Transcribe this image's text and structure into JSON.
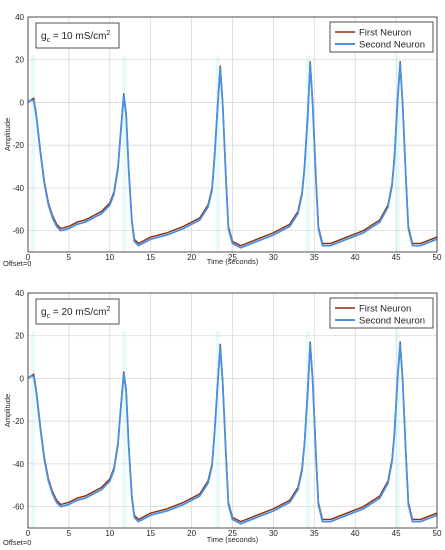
{
  "colors": {
    "first_neuron": "#8b2e0f",
    "second_neuron": "#4a90e2",
    "noise": "#b8f0f4",
    "grid": "#d9d9d9",
    "axis": "#262626"
  },
  "chart_data": [
    {
      "type": "line",
      "annotation_prefix": "g",
      "annotation_sub": "c",
      "annotation_value": " = 10 mS/cm",
      "annotation_sup": "2",
      "xlabel": "Time (seconds)",
      "ylabel": "Amplitude",
      "offset_label": "Offset=0",
      "xlim": [
        0,
        50
      ],
      "ylim": [
        -70,
        40
      ],
      "xticks": [
        0,
        5,
        10,
        15,
        20,
        25,
        30,
        35,
        40,
        45,
        50
      ],
      "yticks": [
        40,
        20,
        0,
        -20,
        -40,
        -60
      ],
      "grid": true,
      "legend_position": "top-right",
      "series": [
        {
          "name": "First Neuron",
          "x": [
            0,
            0.3,
            0.7,
            1,
            1.5,
            2,
            2.5,
            3,
            3.5,
            4,
            5,
            6,
            7,
            8,
            9,
            10,
            10.5,
            11,
            11.3,
            11.7,
            12,
            12.3,
            12.7,
            13,
            13.5,
            14,
            15,
            17,
            19,
            21,
            22,
            22.5,
            22.8,
            23.2,
            23.5,
            23.8,
            24.2,
            24.5,
            25,
            26,
            28,
            30,
            32,
            33,
            33.5,
            33.8,
            34.2,
            34.5,
            34.8,
            35.2,
            35.5,
            36,
            37,
            39,
            41,
            43,
            44,
            44.5,
            44.8,
            45.2,
            45.5,
            45.8,
            46.2,
            46.5,
            47,
            48,
            50
          ],
          "y": [
            0,
            1,
            2,
            -5,
            -22,
            -37,
            -47,
            -53,
            -57,
            -59,
            -58,
            -56,
            -55,
            -53,
            -51,
            -47,
            -42,
            -30,
            -15,
            4,
            -5,
            -30,
            -55,
            -64,
            -66,
            -65,
            -63,
            -61,
            -58,
            -54,
            -48,
            -40,
            -25,
            0,
            17,
            0,
            -35,
            -58,
            -65,
            -67,
            -64,
            -61,
            -57,
            -51,
            -42,
            -30,
            -5,
            19,
            0,
            -35,
            -58,
            -66,
            -66,
            -63,
            -60,
            -55,
            -48,
            -38,
            -25,
            3,
            19,
            0,
            -35,
            -58,
            -66,
            -66,
            -63
          ]
        },
        {
          "name": "Second Neuron",
          "x": [
            0,
            0.3,
            0.7,
            1,
            1.5,
            2,
            2.5,
            3,
            3.5,
            4,
            5,
            6,
            7,
            8,
            9,
            10,
            10.5,
            11,
            11.3,
            11.7,
            12,
            12.3,
            12.7,
            13,
            13.5,
            14,
            15,
            17,
            19,
            21,
            22,
            22.5,
            22.8,
            23.2,
            23.5,
            23.8,
            24.2,
            24.5,
            25,
            26,
            28,
            30,
            32,
            33,
            33.5,
            33.8,
            34.2,
            34.5,
            34.8,
            35.2,
            35.5,
            36,
            37,
            39,
            41,
            43,
            44,
            44.5,
            44.8,
            45.2,
            45.5,
            45.8,
            46.2,
            46.5,
            47,
            48,
            50
          ],
          "y": [
            0,
            1,
            1,
            -6,
            -23,
            -38,
            -48,
            -54,
            -58,
            -60,
            -59,
            -57,
            -56,
            -54,
            -52,
            -48,
            -43,
            -31,
            -16,
            3,
            -6,
            -31,
            -56,
            -65,
            -67,
            -66,
            -64,
            -62,
            -59,
            -55,
            -49,
            -41,
            -26,
            -1,
            16,
            -1,
            -36,
            -59,
            -66,
            -68,
            -65,
            -62,
            -58,
            -52,
            -43,
            -31,
            -6,
            18,
            -1,
            -36,
            -59,
            -67,
            -67,
            -64,
            -61,
            -56,
            -49,
            -39,
            -26,
            2,
            18,
            -1,
            -36,
            -59,
            -67,
            -67,
            -64
          ]
        }
      ]
    },
    {
      "type": "line",
      "annotation_prefix": "g",
      "annotation_sub": "c",
      "annotation_value": " = 20 mS/cm",
      "annotation_sup": "2",
      "xlabel": "Time (seconds)",
      "ylabel": "Amplitude",
      "offset_label": "Offset=0",
      "xlim": [
        0,
        50
      ],
      "ylim": [
        -70,
        40
      ],
      "xticks": [
        0,
        5,
        10,
        15,
        20,
        25,
        30,
        35,
        40,
        45,
        50
      ],
      "yticks": [
        40,
        20,
        0,
        -20,
        -40,
        -60
      ],
      "grid": true,
      "legend_position": "top-right",
      "series": [
        {
          "name": "First Neuron",
          "x": [
            0,
            0.3,
            0.7,
            1,
            1.5,
            2,
            2.5,
            3,
            3.5,
            4,
            5,
            6,
            7,
            8,
            9,
            10,
            10.5,
            11,
            11.3,
            11.7,
            12,
            12.3,
            12.7,
            13,
            13.5,
            14,
            15,
            17,
            19,
            21,
            22,
            22.5,
            22.8,
            23.2,
            23.5,
            23.8,
            24.2,
            24.5,
            25,
            26,
            28,
            30,
            32,
            33,
            33.5,
            33.8,
            34.2,
            34.5,
            34.8,
            35.2,
            35.5,
            36,
            37,
            39,
            41,
            43,
            44,
            44.5,
            44.8,
            45.2,
            45.5,
            45.8,
            46.2,
            46.5,
            47,
            48,
            50
          ],
          "y": [
            0,
            1,
            2,
            -5,
            -22,
            -37,
            -47,
            -53,
            -57,
            -59,
            -58,
            -56,
            -55,
            -53,
            -51,
            -47,
            -42,
            -30,
            -15,
            3,
            -5,
            -30,
            -55,
            -64,
            -66,
            -65,
            -63,
            -61,
            -58,
            -54,
            -48,
            -40,
            -25,
            -1,
            16,
            -1,
            -35,
            -58,
            -65,
            -67,
            -64,
            -61,
            -57,
            -51,
            -42,
            -30,
            -5,
            17,
            0,
            -35,
            -58,
            -66,
            -66,
            -63,
            -60,
            -55,
            -48,
            -38,
            -25,
            2,
            17,
            0,
            -35,
            -58,
            -66,
            -66,
            -63
          ]
        },
        {
          "name": "Second Neuron",
          "x": [
            0,
            0.3,
            0.7,
            1,
            1.5,
            2,
            2.5,
            3,
            3.5,
            4,
            5,
            6,
            7,
            8,
            9,
            10,
            10.5,
            11,
            11.3,
            11.7,
            12,
            12.3,
            12.7,
            13,
            13.5,
            14,
            15,
            17,
            19,
            21,
            22,
            22.5,
            22.8,
            23.2,
            23.5,
            23.8,
            24.2,
            24.5,
            25,
            26,
            28,
            30,
            32,
            33,
            33.5,
            33.8,
            34.2,
            34.5,
            34.8,
            35.2,
            35.5,
            36,
            37,
            39,
            41,
            43,
            44,
            44.5,
            44.8,
            45.2,
            45.5,
            45.8,
            46.2,
            46.5,
            47,
            48,
            50
          ],
          "y": [
            0,
            1,
            1,
            -6,
            -23,
            -38,
            -48,
            -54,
            -58,
            -60,
            -59,
            -57,
            -56,
            -54,
            -52,
            -48,
            -43,
            -31,
            -16,
            2,
            -6,
            -31,
            -56,
            -65,
            -67,
            -66,
            -64,
            -62,
            -59,
            -55,
            -49,
            -41,
            -26,
            -2,
            15,
            -2,
            -36,
            -59,
            -66,
            -68,
            -65,
            -62,
            -58,
            -52,
            -43,
            -31,
            -6,
            16,
            -1,
            -36,
            -59,
            -67,
            -67,
            -64,
            -61,
            -56,
            -49,
            -39,
            -26,
            1,
            16,
            -1,
            -36,
            -59,
            -67,
            -67,
            -64
          ]
        }
      ]
    }
  ]
}
